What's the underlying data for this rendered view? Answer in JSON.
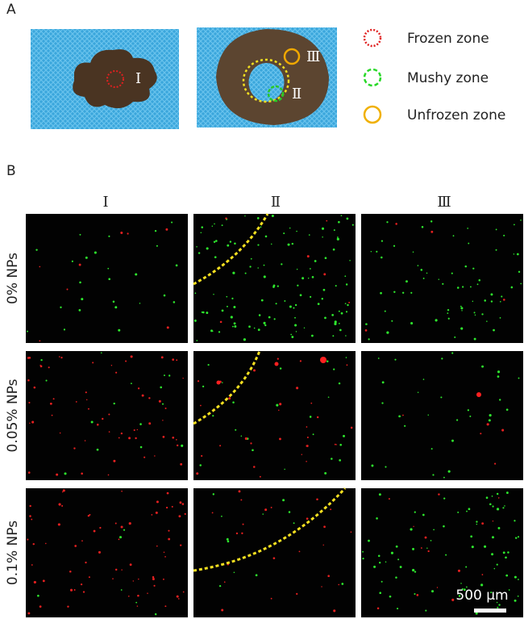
{
  "panel_a": {
    "label": "A",
    "zone_marks": [
      "Ⅰ",
      "Ⅱ",
      "Ⅲ"
    ],
    "legend": [
      "Frozen zone",
      "Mushy zone",
      "Unfrozen zone"
    ]
  },
  "panel_b": {
    "label": "B",
    "columns": [
      "Ⅰ",
      "Ⅱ",
      "Ⅲ"
    ],
    "rows": [
      "0% NPs",
      "0.05% NPs",
      "0.1% NPs"
    ],
    "scale_bar": "500 µm"
  }
}
